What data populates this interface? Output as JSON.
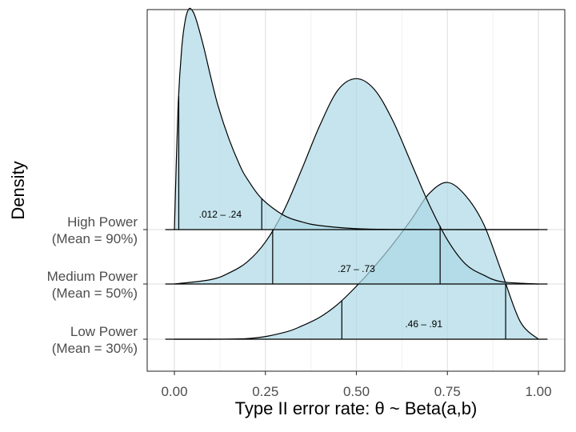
{
  "chart_data": {
    "type": "area",
    "subtype": "ridgeline-density",
    "xlabel": "Type II error rate: θ ~ Beta(a,b)",
    "ylabel": "Density",
    "xlim": [
      -0.07,
      1.07
    ],
    "x_ticks": [
      0.0,
      0.25,
      0.5,
      0.75,
      1.0
    ],
    "x_tick_labels": [
      "0.00",
      "0.25",
      "0.50",
      "0.75",
      "1.00"
    ],
    "grid": true,
    "fill_color": "#add8e6",
    "series": [
      {
        "name_line1": "High Power",
        "name_line2": "(Mean = 90%)",
        "ci": [
          0.012,
          0.24
        ],
        "ci_label": ".012 – .24",
        "x": [
          0.0,
          0.01,
          0.02,
          0.03,
          0.04,
          0.05,
          0.06,
          0.08,
          0.1,
          0.12,
          0.15,
          0.18,
          0.2,
          0.24,
          0.3,
          0.35,
          0.4,
          0.5,
          0.6,
          0.8,
          1.0
        ],
        "density": [
          0.0,
          0.55,
          0.82,
          0.95,
          1.0,
          0.99,
          0.95,
          0.83,
          0.69,
          0.56,
          0.41,
          0.29,
          0.23,
          0.14,
          0.065,
          0.035,
          0.018,
          0.004,
          0.001,
          0.0,
          0.0
        ]
      },
      {
        "name_line1": "Medium Power",
        "name_line2": "(Mean = 50%)",
        "ci": [
          0.27,
          0.73
        ],
        "ci_label": ".27 – .73",
        "x": [
          0.0,
          0.1,
          0.15,
          0.2,
          0.25,
          0.3,
          0.35,
          0.4,
          0.45,
          0.5,
          0.55,
          0.6,
          0.65,
          0.7,
          0.75,
          0.8,
          0.85,
          0.9,
          1.0
        ],
        "density": [
          0.0,
          0.02,
          0.05,
          0.1,
          0.19,
          0.33,
          0.52,
          0.72,
          0.88,
          0.93,
          0.88,
          0.74,
          0.55,
          0.36,
          0.2,
          0.09,
          0.04,
          0.01,
          0.0
        ]
      },
      {
        "name_line1": "Low Power",
        "name_line2": "(Mean = 30%)",
        "ci": [
          0.46,
          0.91
        ],
        "ci_label": ".46 – .91",
        "x": [
          0.0,
          0.2,
          0.3,
          0.35,
          0.4,
          0.45,
          0.5,
          0.55,
          0.6,
          0.65,
          0.7,
          0.75,
          0.8,
          0.85,
          0.9,
          0.95,
          1.0
        ],
        "density": [
          0.0,
          0.003,
          0.03,
          0.06,
          0.1,
          0.16,
          0.24,
          0.33,
          0.43,
          0.54,
          0.66,
          0.71,
          0.65,
          0.52,
          0.3,
          0.08,
          0.0
        ]
      }
    ]
  }
}
